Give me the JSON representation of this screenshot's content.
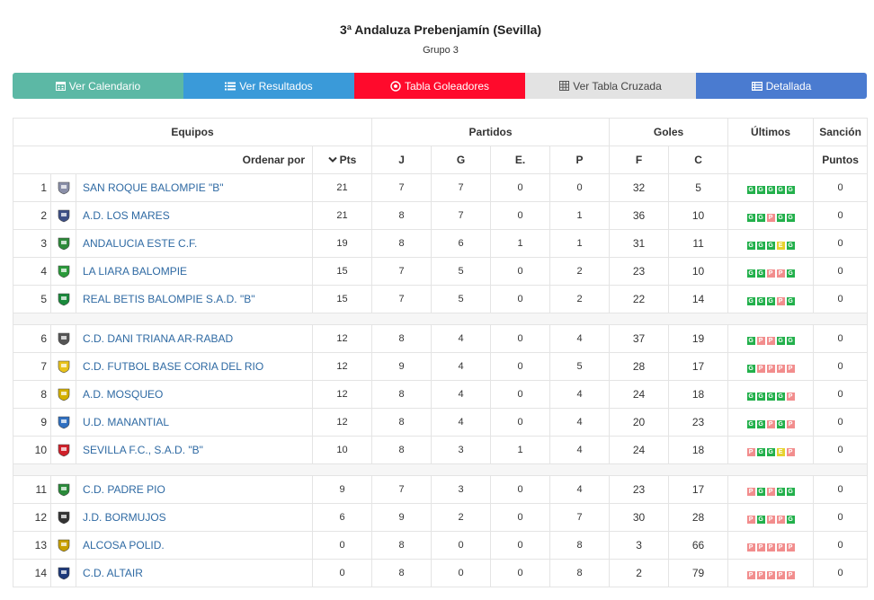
{
  "header": {
    "title": "3ª Andaluza Prebenjamín (Sevilla)",
    "subtitle": "Grupo 3"
  },
  "tabs": [
    {
      "label": "Ver Calendario",
      "icon": "calendar-icon"
    },
    {
      "label": "Ver Resultados",
      "icon": "list-icon"
    },
    {
      "label": "Tabla Goleadores",
      "icon": "soccer-ball-icon"
    },
    {
      "label": "Ver Tabla Cruzada",
      "icon": "grid-icon"
    },
    {
      "label": "Detallada",
      "icon": "list-details-icon"
    }
  ],
  "table": {
    "groups": {
      "equipos": "Equipos",
      "partidos": "Partidos",
      "goles": "Goles",
      "ultimos": "Últimos",
      "sancion": "Sanción"
    },
    "columns": {
      "ordenar": "Ordenar por",
      "pts": "Pts",
      "j": "J",
      "g": "G",
      "e": "E.",
      "p": "P",
      "f": "F",
      "c": "C",
      "puntos": "Puntos"
    },
    "sections": [
      {
        "rows": [
          {
            "pos": "1",
            "team": "SAN ROQUE BALOMPIE \"B\"",
            "pts": "21",
            "j": "7",
            "g": "7",
            "e": "0",
            "p": "0",
            "f": "32",
            "c": "5",
            "forms": [
              "G",
              "G",
              "G",
              "G",
              "G"
            ],
            "sancion": "0",
            "logo_color": "#8a8fa8"
          },
          {
            "pos": "2",
            "team": "A.D. LOS MARES",
            "pts": "21",
            "j": "8",
            "g": "7",
            "e": "0",
            "p": "1",
            "f": "36",
            "c": "10",
            "forms": [
              "G",
              "G",
              "P",
              "G",
              "G"
            ],
            "sancion": "0",
            "logo_color": "#3d4f86"
          },
          {
            "pos": "3",
            "team": "ANDALUCIA ESTE C.F.",
            "pts": "19",
            "j": "8",
            "g": "6",
            "e": "1",
            "p": "1",
            "f": "31",
            "c": "11",
            "forms": [
              "G",
              "G",
              "G",
              "E",
              "G"
            ],
            "sancion": "0",
            "logo_color": "#2e8a3a"
          },
          {
            "pos": "4",
            "team": "LA LIARA BALOMPIE",
            "pts": "15",
            "j": "7",
            "g": "5",
            "e": "0",
            "p": "2",
            "f": "23",
            "c": "10",
            "forms": [
              "G",
              "G",
              "P",
              "P",
              "G"
            ],
            "sancion": "0",
            "logo_color": "#2a9a3a"
          },
          {
            "pos": "5",
            "team": "REAL BETIS BALOMPIE S.A.D. \"B\"",
            "pts": "15",
            "j": "7",
            "g": "5",
            "e": "0",
            "p": "2",
            "f": "22",
            "c": "14",
            "forms": [
              "G",
              "G",
              "G",
              "P",
              "G"
            ],
            "sancion": "0",
            "logo_color": "#1b8a3c"
          }
        ]
      },
      {
        "rows": [
          {
            "pos": "6",
            "team": "C.D. DANI TRIANA AR-RABAD",
            "pts": "12",
            "j": "8",
            "g": "4",
            "e": "0",
            "p": "4",
            "f": "37",
            "c": "19",
            "forms": [
              "G",
              "P",
              "P",
              "G",
              "G"
            ],
            "sancion": "0",
            "logo_color": "#555555"
          },
          {
            "pos": "7",
            "team": "C.D. FUTBOL BASE CORIA DEL RIO",
            "pts": "12",
            "j": "9",
            "g": "4",
            "e": "0",
            "p": "5",
            "f": "28",
            "c": "17",
            "forms": [
              "G",
              "P",
              "P",
              "P",
              "P"
            ],
            "sancion": "0",
            "logo_color": "#e8c21a"
          },
          {
            "pos": "8",
            "team": "A.D. MOSQUEO",
            "pts": "12",
            "j": "8",
            "g": "4",
            "e": "0",
            "p": "4",
            "f": "24",
            "c": "18",
            "forms": [
              "G",
              "G",
              "G",
              "G",
              "P"
            ],
            "sancion": "0",
            "logo_color": "#d4b000"
          },
          {
            "pos": "9",
            "team": "U.D. MANANTIAL",
            "pts": "12",
            "j": "8",
            "g": "4",
            "e": "0",
            "p": "4",
            "f": "20",
            "c": "23",
            "forms": [
              "G",
              "G",
              "P",
              "G",
              "P"
            ],
            "sancion": "0",
            "logo_color": "#2f6fc0"
          },
          {
            "pos": "10",
            "team": "SEVILLA F.C., S.A.D. \"B\"",
            "pts": "10",
            "j": "8",
            "g": "3",
            "e": "1",
            "p": "4",
            "f": "24",
            "c": "18",
            "forms": [
              "P",
              "G",
              "G",
              "E",
              "P"
            ],
            "sancion": "0",
            "logo_color": "#d0202a"
          }
        ]
      },
      {
        "rows": [
          {
            "pos": "11",
            "team": "C.D. PADRE PIO",
            "pts": "9",
            "j": "7",
            "g": "3",
            "e": "0",
            "p": "4",
            "f": "23",
            "c": "17",
            "forms": [
              "P",
              "G",
              "P",
              "G",
              "G"
            ],
            "sancion": "0",
            "logo_color": "#2a8a3a"
          },
          {
            "pos": "12",
            "team": "J.D. BORMUJOS",
            "pts": "6",
            "j": "9",
            "g": "2",
            "e": "0",
            "p": "7",
            "f": "30",
            "c": "28",
            "forms": [
              "P",
              "G",
              "P",
              "P",
              "G"
            ],
            "sancion": "0",
            "logo_color": "#333333"
          },
          {
            "pos": "13",
            "team": "ALCOSA POLID.",
            "pts": "0",
            "j": "8",
            "g": "0",
            "e": "0",
            "p": "8",
            "f": "3",
            "c": "66",
            "forms": [
              "P",
              "P",
              "P",
              "P",
              "P"
            ],
            "sancion": "0",
            "logo_color": "#c8a000"
          },
          {
            "pos": "14",
            "team": "C.D. ALTAIR",
            "pts": "0",
            "j": "8",
            "g": "0",
            "e": "0",
            "p": "8",
            "f": "2",
            "c": "79",
            "forms": [
              "P",
              "P",
              "P",
              "P",
              "P"
            ],
            "sancion": "0",
            "logo_color": "#1e3a7a"
          }
        ]
      }
    ]
  },
  "colors": {
    "win": "#22b04b",
    "loss": "#f28d8d",
    "draw": "#e6d22e",
    "link": "#2f6aa3"
  }
}
